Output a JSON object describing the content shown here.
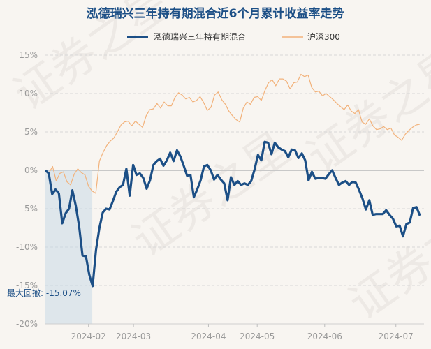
{
  "chart_data": {
    "type": "line",
    "title": "泓德瑞兴三年持有期混合近6个月累计收益率走势",
    "legend": [
      "泓德瑞兴三年持有期混合",
      "沪深300"
    ],
    "legend_position": "top-center",
    "y_tick_labels": [
      "15%",
      "10%",
      "5%",
      "0%",
      "-5%",
      "-10%",
      "-15%",
      "-20%"
    ],
    "y_ticks": [
      15,
      10,
      5,
      0,
      -5,
      -10,
      -15,
      -20
    ],
    "ylim": [
      -20,
      15
    ],
    "x_tick_labels": [
      "2024-02",
      "2024-03",
      "2024-04",
      "2024-05",
      "2024-06",
      "2024-07"
    ],
    "x_tick_positions": [
      11.5,
      23.5,
      43.5,
      56.5,
      74.5,
      93.5
    ],
    "xlim": [
      0,
      101
    ],
    "max_drawdown_label": "最大回撤: -15.07%",
    "max_drawdown_value": -15.07,
    "max_drawdown_range": [
      0,
      12.5
    ],
    "watermark": "证券之星",
    "series": [
      {
        "name": "泓德瑞兴三年持有期混合",
        "color": "#1c4f86",
        "values": [
          0.0,
          -0.4,
          -3.1,
          -2.5,
          -3.0,
          -6.9,
          -5.6,
          -5.0,
          -2.6,
          -4.6,
          -7.3,
          -11.1,
          -11.2,
          -13.6,
          -15.07,
          -10.4,
          -7.5,
          -5.5,
          -5.0,
          -5.1,
          -4.0,
          -2.8,
          -2.2,
          -1.9,
          0.2,
          -3.3,
          0.7,
          -0.6,
          -0.4,
          -1.0,
          -2.4,
          -1.3,
          0.7,
          1.2,
          1.5,
          0.6,
          1.3,
          2.3,
          1.2,
          2.6,
          1.8,
          0.6,
          -0.7,
          -0.6,
          -3.5,
          -2.5,
          -1.3,
          0.5,
          0.7,
          0.0,
          -1.2,
          -0.6,
          -1.2,
          -1.7,
          -3.9,
          -0.9,
          -1.9,
          -1.4,
          -1.9,
          -1.7,
          -1.9,
          -1.4,
          0.1,
          2.0,
          1.3,
          3.7,
          3.6,
          2.1,
          3.6,
          3.0,
          2.7,
          2.5,
          1.7,
          2.7,
          2.6,
          1.6,
          2.2,
          1.3,
          -1.3,
          -0.2,
          -1.1,
          -1.0,
          -1.0,
          -1.1,
          -0.5,
          0.0,
          -1.0,
          -1.9,
          -1.6,
          -1.4,
          -1.9,
          -1.5,
          -1.6,
          -2.6,
          -3.7,
          -5.1,
          -3.9,
          -5.8,
          -5.7,
          -5.7,
          -5.7,
          -5.2,
          -5.8,
          -6.3,
          -7.3,
          -7.2,
          -8.6,
          -7.0,
          -6.8,
          -4.9,
          -4.8,
          -5.9
        ],
        "x_step": 0.9
      },
      {
        "name": "沪深300",
        "color": "#f2b27b",
        "values": [
          0.0,
          -0.3,
          0.5,
          -1.4,
          -0.4,
          -0.2,
          -1.5,
          -1.9,
          -0.5,
          0.2,
          -0.3,
          -0.6,
          -2.1,
          -2.7,
          -3.0,
          1.2,
          2.3,
          3.2,
          3.8,
          4.2,
          5.0,
          5.9,
          6.3,
          6.4,
          5.8,
          6.4,
          6.0,
          5.6,
          7.1,
          7.9,
          8.0,
          8.7,
          8.1,
          8.9,
          8.4,
          8.4,
          9.5,
          10.1,
          9.8,
          9.3,
          9.5,
          8.9,
          9.1,
          9.6,
          8.8,
          7.8,
          8.2,
          9.8,
          10.2,
          9.2,
          8.6,
          7.7,
          7.1,
          6.6,
          6.3,
          8.1,
          8.9,
          8.6,
          9.5,
          9.6,
          9.1,
          10.4,
          11.4,
          11.8,
          11.0,
          11.9,
          11.9,
          11.6,
          10.6,
          11.4,
          11.5,
          12.5,
          12.2,
          12.4,
          10.8,
          10.2,
          10.3,
          9.7,
          10.0,
          9.6,
          9.2,
          8.7,
          8.3,
          7.9,
          8.5,
          7.7,
          7.4,
          7.9,
          6.3,
          6.0,
          6.7,
          5.8,
          5.3,
          5.4,
          5.7,
          5.3,
          5.5,
          4.6,
          4.3,
          3.9,
          4.7,
          5.2,
          5.6,
          5.9,
          6.0
        ],
        "x_step": 0.96
      }
    ]
  }
}
